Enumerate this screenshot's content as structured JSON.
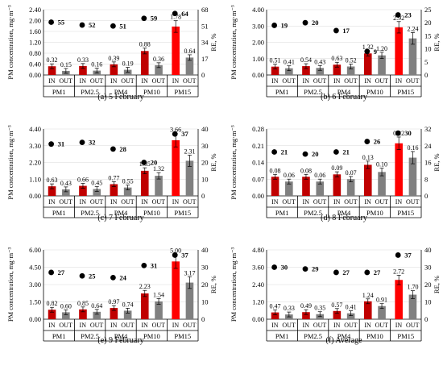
{
  "chart_data": [
    {
      "type": "bar",
      "caption": "(a) 5 February",
      "ylabel": "PM concentration, mg·m⁻³",
      "y2label": "RE, %",
      "ylim": [
        0,
        2.4
      ],
      "yticks": [
        "0.00",
        "0.40",
        "0.80",
        "1.20",
        "1.60",
        "2.00",
        "2.40"
      ],
      "y2lim": [
        0,
        68
      ],
      "y2ticks": [
        "0",
        "17",
        "34",
        "51",
        "68"
      ],
      "categories": [
        "PM1",
        "PM2.5",
        "PM4",
        "PM10",
        "PM15"
      ],
      "series_labels": [
        "IN",
        "OUT"
      ],
      "in_values": [
        0.32,
        0.33,
        0.39,
        0.88,
        1.78
      ],
      "out_values": [
        0.15,
        0.16,
        0.19,
        0.36,
        0.64
      ],
      "in_labels": [
        "0.32",
        "0.33",
        "0.39",
        "0.88",
        "1.78"
      ],
      "out_labels": [
        "0.15",
        "0.16",
        "0.19",
        "0.36",
        "0.64"
      ],
      "re_values": [
        55,
        52,
        51,
        59,
        64
      ],
      "re_labels": [
        "55",
        "52",
        "51",
        "59",
        "64"
      ]
    },
    {
      "type": "bar",
      "caption": "(b) 6 February",
      "ylabel": "PM concentration, mg·m⁻³",
      "y2label": "RE, %",
      "ylim": [
        0,
        4.0
      ],
      "yticks": [
        "0.00",
        "1.00",
        "2.00",
        "3.00",
        "4.00"
      ],
      "y2lim": [
        0,
        25
      ],
      "y2ticks": [
        "0",
        "5",
        "10",
        "15",
        "20",
        "25"
      ],
      "categories": [
        "PM1",
        "PM2.5",
        "PM4",
        "PM10",
        "PM15"
      ],
      "series_labels": [
        "IN",
        "OUT"
      ],
      "in_values": [
        0.51,
        0.54,
        0.63,
        1.32,
        2.92
      ],
      "out_values": [
        0.41,
        0.43,
        0.52,
        1.2,
        2.24
      ],
      "in_labels": [
        "0.51",
        "0.54",
        "0.63",
        "1.32",
        "2.92"
      ],
      "out_labels": [
        "0.41",
        "0.43",
        "0.52",
        "1.20",
        "2.24"
      ],
      "re_values": [
        19,
        20,
        17,
        9,
        23
      ],
      "re_labels": [
        "19",
        "20",
        "17",
        "9",
        "23"
      ]
    },
    {
      "type": "bar",
      "caption": "(c) 7 February",
      "ylabel": "PM concentration, mg·m⁻³",
      "y2label": "RE, %",
      "ylim": [
        0,
        4.4
      ],
      "yticks": [
        "0.00",
        "1.10",
        "2.20",
        "3.30",
        "4.40"
      ],
      "y2lim": [
        0,
        40
      ],
      "y2ticks": [
        "0",
        "10",
        "20",
        "30",
        "40"
      ],
      "categories": [
        "PM1",
        "PM2.5",
        "PM4",
        "PM10",
        "PM15"
      ],
      "series_labels": [
        "IN",
        "OUT"
      ],
      "in_values": [
        0.63,
        0.66,
        0.77,
        1.65,
        3.66
      ],
      "out_values": [
        0.43,
        0.45,
        0.55,
        1.32,
        2.31
      ],
      "in_labels": [
        "0.63",
        "0.66",
        "0.77",
        "1.65",
        "3.66"
      ],
      "out_labels": [
        "0.43",
        "0.45",
        "0.55",
        "1.32",
        "2.31"
      ],
      "re_values": [
        31,
        32,
        28,
        20,
        37
      ],
      "re_labels": [
        "31",
        "32",
        "28",
        "20",
        "37"
      ]
    },
    {
      "type": "bar",
      "caption": "(d) 8 February",
      "ylabel": "PM concentration, mg·m⁻³",
      "y2label": "RE, %",
      "ylim": [
        0,
        0.28
      ],
      "yticks": [
        "0.00",
        "0.07",
        "0.14",
        "0.21",
        "0.28"
      ],
      "y2lim": [
        0,
        32
      ],
      "y2ticks": [
        "0",
        "8",
        "16",
        "24",
        "32"
      ],
      "categories": [
        "PM1",
        "PM2.5",
        "PM4",
        "PM10",
        "PM15"
      ],
      "series_labels": [
        "IN",
        "OUT"
      ],
      "in_values": [
        0.08,
        0.08,
        0.09,
        0.13,
        0.22
      ],
      "out_values": [
        0.06,
        0.06,
        0.07,
        0.1,
        0.16
      ],
      "in_labels": [
        "0.08",
        "0.08",
        "0.09",
        "0.13",
        "0.22"
      ],
      "out_labels": [
        "0.06",
        "0.06",
        "0.07",
        "0.10",
        "0.16"
      ],
      "re_values": [
        21,
        20,
        21,
        26,
        30
      ],
      "re_labels": [
        "21",
        "20",
        "21",
        "26",
        "30"
      ]
    },
    {
      "type": "bar",
      "caption": "(e) 9 February",
      "ylabel": "PM concentration, mg·m⁻³",
      "y2label": "RE, %",
      "ylim": [
        0,
        6.0
      ],
      "yticks": [
        "0.00",
        "1.50",
        "3.00",
        "4.50",
        "6.00"
      ],
      "y2lim": [
        0,
        40
      ],
      "y2ticks": [
        "0",
        "10",
        "20",
        "30",
        "40"
      ],
      "categories": [
        "PM1",
        "PM2.5",
        "PM4",
        "PM10",
        "PM15"
      ],
      "series_labels": [
        "IN",
        "OUT"
      ],
      "in_values": [
        0.82,
        0.85,
        0.97,
        2.23,
        5.0
      ],
      "out_values": [
        0.6,
        0.64,
        0.74,
        1.54,
        3.17
      ],
      "in_labels": [
        "0.82",
        "0.85",
        "0.97",
        "2.23",
        "5.00"
      ],
      "out_labels": [
        "0.60",
        "0.64",
        "0.74",
        "1.54",
        "3.17"
      ],
      "re_values": [
        27,
        25,
        24,
        31,
        37
      ],
      "re_labels": [
        "27",
        "25",
        "24",
        "31",
        "37"
      ]
    },
    {
      "type": "bar",
      "caption": "(f) Average",
      "ylabel": "PM concentration, mg·m⁻³",
      "y2label": "RE, %",
      "ylim": [
        0,
        4.8
      ],
      "yticks": [
        "0.00",
        "1.20",
        "2.40",
        "3.60",
        "4.80"
      ],
      "y2lim": [
        0,
        40
      ],
      "y2ticks": [
        "0",
        "10",
        "20",
        "30",
        "40"
      ],
      "categories": [
        "PM1",
        "PM2.5",
        "PM4",
        "PM10",
        "PM15"
      ],
      "series_labels": [
        "IN",
        "OUT"
      ],
      "in_values": [
        0.47,
        0.49,
        0.57,
        1.24,
        2.72
      ],
      "out_values": [
        0.33,
        0.35,
        0.41,
        0.91,
        1.7
      ],
      "in_labels": [
        "0.47",
        "0.49",
        "0.57",
        "1.24",
        "2.72"
      ],
      "out_labels": [
        "0.33",
        "0.35",
        "0.41",
        "0.91",
        "1.70"
      ],
      "re_values": [
        30,
        29,
        27,
        27,
        37
      ],
      "re_labels": [
        "30",
        "29",
        "27",
        "27",
        "37"
      ]
    }
  ],
  "colors": {
    "in_bar": "#c00000",
    "in_bar_last": "#ff0000",
    "out_bar": "#808080",
    "re_marker": "#000000"
  }
}
